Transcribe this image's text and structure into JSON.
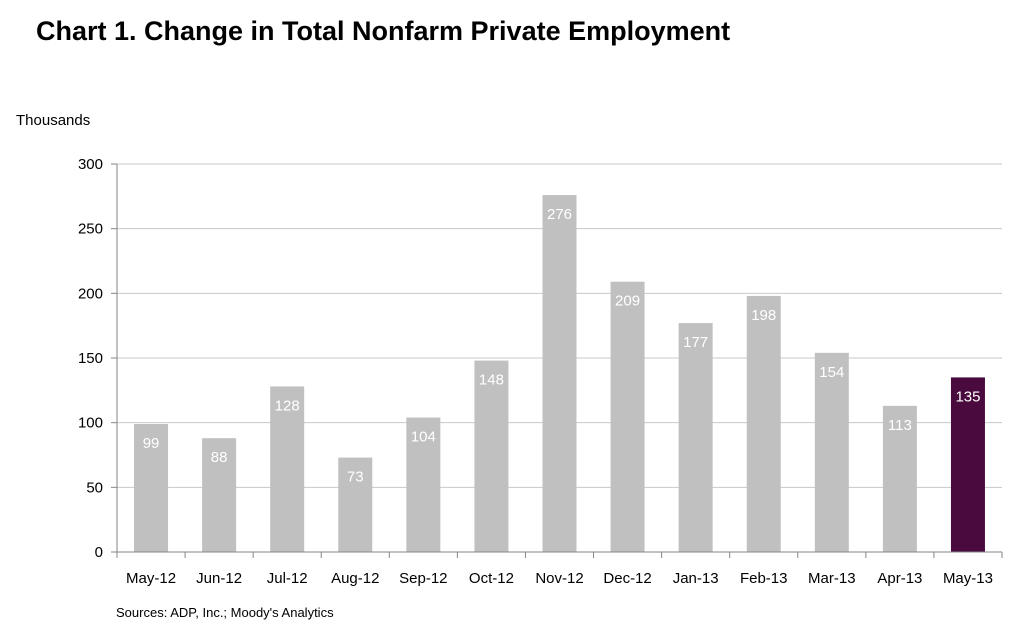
{
  "chart_data": {
    "type": "bar",
    "title": "Chart 1. Change in Total Nonfarm Private Employment",
    "ylabel": "Thousands",
    "xlabel": "",
    "categories": [
      "May-12",
      "Jun-12",
      "Jul-12",
      "Aug-12",
      "Sep-12",
      "Oct-12",
      "Nov-12",
      "Dec-12",
      "Jan-13",
      "Feb-13",
      "Mar-13",
      "Apr-13",
      "May-13"
    ],
    "values": [
      99,
      88,
      128,
      73,
      104,
      148,
      276,
      209,
      177,
      198,
      154,
      113,
      135
    ],
    "ylim": [
      0,
      300
    ],
    "yticks": [
      0,
      50,
      100,
      150,
      200,
      250,
      300
    ],
    "grid": true,
    "legend": "none",
    "colors": {
      "bar": "#c0c0c0",
      "highlight": "#4a0a3e",
      "grid": "#c8c8c8",
      "label": "#ffffff"
    },
    "highlight_index": 12
  },
  "source": "Sources: ADP, Inc.; Moody's Analytics"
}
